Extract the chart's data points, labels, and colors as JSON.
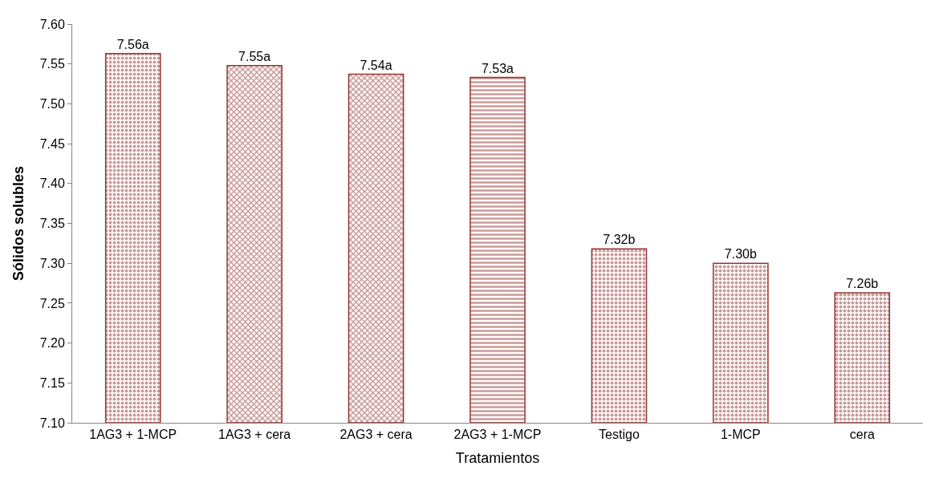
{
  "chart_data": {
    "type": "bar",
    "xlabel": "Tratamientos",
    "ylabel": "Sólidos solubles",
    "categories": [
      "1AG3 + 1-MCP",
      "1AG3 + cera",
      "2AG3 + cera",
      "2AG3 + 1-MCP",
      "Testigo",
      "1-MCP",
      "cera"
    ],
    "values": [
      7.563,
      7.548,
      7.537,
      7.533,
      7.318,
      7.3,
      7.263
    ],
    "value_labels": [
      "7.56a",
      "7.55a",
      "7.54a",
      "7.53a",
      "7.32b",
      "7.30b",
      "7.26b"
    ],
    "color": "#953735",
    "ylim": [
      7.1,
      7.6
    ],
    "yticks": [
      {
        "value": 7.1,
        "label": "7.10"
      },
      {
        "value": 7.15,
        "label": "7.15"
      },
      {
        "value": 7.2,
        "label": "7.20"
      },
      {
        "value": 7.25,
        "label": "7.25"
      },
      {
        "value": 7.3,
        "label": "7.30"
      },
      {
        "value": 7.35,
        "label": "7.35"
      },
      {
        "value": 7.4,
        "label": "7.40"
      },
      {
        "value": 7.45,
        "label": "7.45"
      },
      {
        "value": 7.5,
        "label": "7.50"
      },
      {
        "value": 7.55,
        "label": "7.55"
      },
      {
        "value": 7.6,
        "label": "7.60"
      }
    ],
    "legend": false
  }
}
